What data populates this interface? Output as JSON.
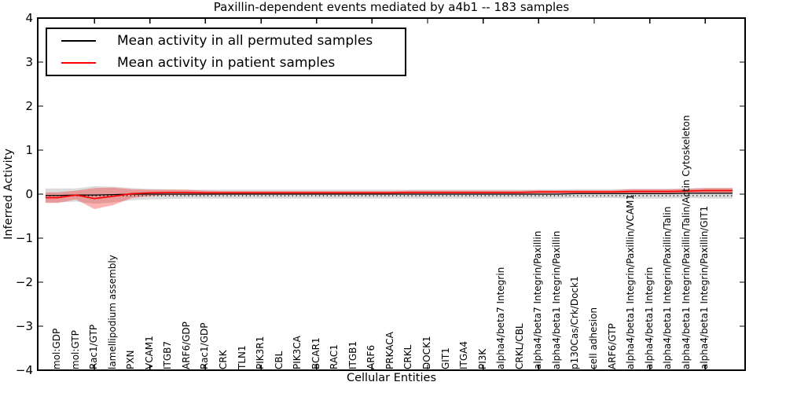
{
  "chart_data": {
    "type": "line",
    "title": "Paxillin-dependent events mediated by a4b1 -- 183 samples",
    "xlabel": "Cellular Entities",
    "ylabel": "Inferred Activity",
    "ylim": [
      -4,
      4
    ],
    "ytick_labels": [
      "4",
      "3",
      "2",
      "1",
      "0",
      "−1",
      "−2",
      "−3",
      "−4"
    ],
    "ytick_values": [
      4,
      3,
      2,
      1,
      0,
      -1,
      -2,
      -3,
      -4
    ],
    "grid": false,
    "legend_position": "upper left",
    "zero_line_style": "dotted",
    "categories": [
      "mol:GDP",
      "mol:GTP",
      "Rac1/GTP",
      "lamellipodium assembly",
      "PXN",
      "VCAM1",
      "ITGB7",
      "ARF6/GDP",
      "Rac1/GDP",
      "CRK",
      "TLN1",
      "PIK3R1",
      "CBL",
      "PIK3CA",
      "BCAR1",
      "RAC1",
      "ITGB1",
      "ARF6",
      "PRKACA",
      "CRKL",
      "DOCK1",
      "GIT1",
      "ITGA4",
      "PI3K",
      "alpha4/beta7 Integrin",
      "CRKL/CBL",
      "alpha4/beta7 Integrin/Paxillin",
      "alpha4/beta1 Integrin/Paxillin",
      "p130Cas/Crk/Dock1",
      "cell adhesion",
      "ARF6/GTP",
      "alpha4/beta1 Integrin/Paxillin/VCAM1",
      "alpha4/beta1 Integrin",
      "alpha4/beta1 Integrin/Paxillin/Talin",
      "alpha4/beta1 Integrin/Paxillin/Talin/Actin Cytoskeleton",
      "alpha4/beta1 Integrin/Paxillin/GIT1"
    ],
    "series": [
      {
        "name": "Mean activity in all permuted samples",
        "color": "#000000",
        "band_color": "rgba(0,0,0,0.14)",
        "values": [
          -0.03,
          -0.02,
          -0.02,
          -0.01,
          0,
          0,
          0,
          0,
          0,
          0,
          0,
          0,
          0,
          0,
          0,
          0,
          0,
          0,
          0,
          0,
          0,
          0,
          0,
          0,
          0,
          0,
          0,
          0,
          0.01,
          0.01,
          0.01,
          0.01,
          0.01,
          0.01,
          0.02,
          0.02
        ],
        "band_halfwidth": [
          0.16,
          0.15,
          0.2,
          0.18,
          0.14,
          0.12,
          0.11,
          0.1,
          0.1,
          0.1,
          0.1,
          0.1,
          0.1,
          0.1,
          0.1,
          0.1,
          0.1,
          0.1,
          0.1,
          0.1,
          0.1,
          0.1,
          0.1,
          0.1,
          0.1,
          0.1,
          0.1,
          0.1,
          0.1,
          0.1,
          0.1,
          0.11,
          0.11,
          0.11,
          0.11,
          0.12
        ]
      },
      {
        "name": "Mean activity in patient samples",
        "color": "#ff0000",
        "band_color": "rgba(255,0,0,0.30)",
        "values": [
          -0.08,
          -0.02,
          -0.1,
          -0.05,
          0.01,
          0.03,
          0.04,
          0.04,
          0.03,
          0.03,
          0.03,
          0.03,
          0.03,
          0.03,
          0.03,
          0.03,
          0.03,
          0.03,
          0.03,
          0.04,
          0.04,
          0.04,
          0.04,
          0.04,
          0.04,
          0.04,
          0.05,
          0.05,
          0.05,
          0.05,
          0.05,
          0.06,
          0.06,
          0.06,
          0.07,
          0.08
        ],
        "band_halfwidth": [
          0.12,
          0.1,
          0.24,
          0.2,
          0.1,
          0.07,
          0.06,
          0.06,
          0.05,
          0.04,
          0.04,
          0.04,
          0.04,
          0.04,
          0.04,
          0.04,
          0.04,
          0.04,
          0.04,
          0.04,
          0.04,
          0.04,
          0.04,
          0.04,
          0.04,
          0.04,
          0.04,
          0.04,
          0.04,
          0.04,
          0.04,
          0.05,
          0.05,
          0.05,
          0.05,
          0.06
        ]
      }
    ]
  }
}
